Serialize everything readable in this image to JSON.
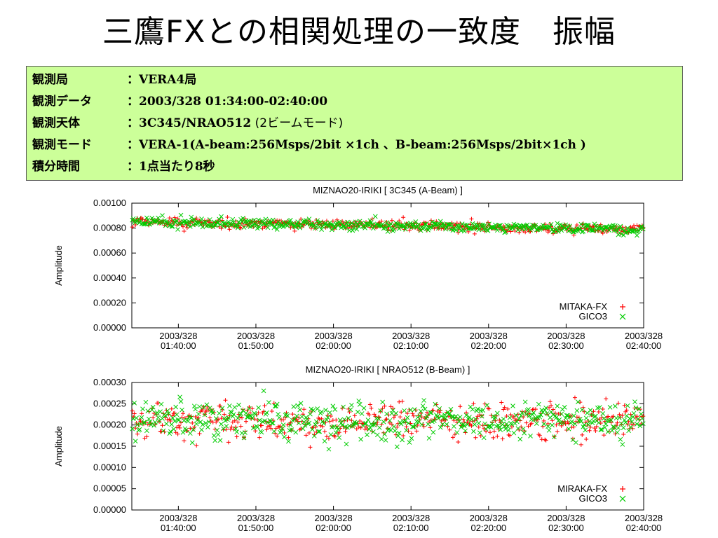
{
  "slide": {
    "title": "三鷹FXとの相関処理の一致度　振幅"
  },
  "info": {
    "rows": [
      {
        "label": "観測局",
        "sep": "：",
        "value": "VERA4局",
        "extra": ""
      },
      {
        "label": "観測データ",
        "sep": "：",
        "value": "2003/328 01:34:00-02:40:00",
        "extra": ""
      },
      {
        "label": "観測天体",
        "sep": "：",
        "value": "3C345/NRAO512",
        "extra": " (2ビームモード)"
      },
      {
        "label": "観測モード",
        "sep": "：",
        "value": "VERA-1(A-beam:256Msps/2bit  ×1ch 、B-beam:256Msps/2bit×1ch )",
        "extra": ""
      },
      {
        "label": "積分時間",
        "sep": "：",
        "value": "1点当たり8秒",
        "extra": ""
      }
    ]
  },
  "chart_data": [
    {
      "type": "scatter",
      "title": "MIZNAO20-IRIKI [ 3C345 (A-Beam) ]",
      "xlabel": "",
      "ylabel": "Amplitude",
      "xlim": [
        "2003/328 01:34:00",
        "2003/328 02:40:00"
      ],
      "ylim": [
        0,
        0.001
      ],
      "yticks": [
        "0.00000",
        "0.00020",
        "0.00040",
        "0.00060",
        "0.00080",
        "0.00100"
      ],
      "xticks": [
        {
          "date": "2003/328",
          "time": "01:40:00"
        },
        {
          "date": "2003/328",
          "time": "01:50:00"
        },
        {
          "date": "2003/328",
          "time": "02:00:00"
        },
        {
          "date": "2003/328",
          "time": "02:10:00"
        },
        {
          "date": "2003/328",
          "time": "02:20:00"
        },
        {
          "date": "2003/328",
          "time": "02:30:00"
        },
        {
          "date": "2003/328",
          "time": "02:40:00"
        }
      ],
      "legend_position": "bottom-right",
      "series": [
        {
          "name": "MITAKA-FX",
          "marker": "+",
          "color": "#ff0000",
          "trend_start": 0.00085,
          "trend_end": 0.00079,
          "scatter": 2e-05
        },
        {
          "name": "GICO3",
          "marker": "x",
          "color": "#00cc00",
          "trend_start": 0.00085,
          "trend_end": 0.00079,
          "scatter": 2e-05
        }
      ],
      "grid": false
    },
    {
      "type": "scatter",
      "title": "MIZNAO20-IRIKI [ NRAO512 (B-Beam) ]",
      "xlabel": "",
      "ylabel": "Amplitude",
      "xlim": [
        "2003/328 01:34:00",
        "2003/328 02:40:00"
      ],
      "ylim": [
        0,
        0.0003
      ],
      "yticks": [
        "0.00000",
        "0.00005",
        "0.00010",
        "0.00015",
        "0.00020",
        "0.00025",
        "0.00030"
      ],
      "xticks": [
        {
          "date": "2003/328",
          "time": "01:40:00"
        },
        {
          "date": "2003/328",
          "time": "01:50:00"
        },
        {
          "date": "2003/328",
          "time": "02:00:00"
        },
        {
          "date": "2003/328",
          "time": "02:10:00"
        },
        {
          "date": "2003/328",
          "time": "02:20:00"
        },
        {
          "date": "2003/328",
          "time": "02:30:00"
        },
        {
          "date": "2003/328",
          "time": "02:40:00"
        }
      ],
      "legend_position": "bottom-right",
      "series": [
        {
          "name": "MIRAKA-FX",
          "marker": "+",
          "color": "#ff0000",
          "trend_start": 0.00021,
          "trend_end": 0.00021,
          "scatter": 2.2e-05
        },
        {
          "name": "GICO3",
          "marker": "x",
          "color": "#00cc00",
          "trend_start": 0.00021,
          "trend_end": 0.00021,
          "scatter": 2.2e-05
        }
      ],
      "grid": false
    }
  ]
}
